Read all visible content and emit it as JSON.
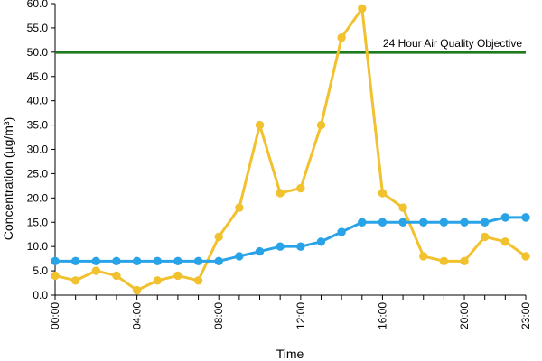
{
  "chart_data": {
    "type": "line",
    "title": "",
    "xlabel": "Time",
    "ylabel": "Concentration (µg/m³)",
    "ylim": [
      0,
      60
    ],
    "y_ticks": [
      "0.0",
      "5.0",
      "10.0",
      "15.0",
      "20.0",
      "25.0",
      "30.0",
      "35.0",
      "40.0",
      "45.0",
      "50.0",
      "55.0",
      "60.0"
    ],
    "x": [
      0,
      1,
      2,
      3,
      4,
      5,
      6,
      7,
      8,
      9,
      10,
      11,
      12,
      13,
      14,
      15,
      16,
      17,
      18,
      19,
      20,
      21,
      22,
      23
    ],
    "x_tick_labels": [
      {
        "hour": 0,
        "label": "00:00"
      },
      {
        "hour": 4,
        "label": "04:00"
      },
      {
        "hour": 8,
        "label": "08:00"
      },
      {
        "hour": 12,
        "label": "12:00"
      },
      {
        "hour": 16,
        "label": "16:00"
      },
      {
        "hour": 20,
        "label": "20:00"
      },
      {
        "hour": 23,
        "label": "23:00"
      }
    ],
    "grid": false,
    "series": [
      {
        "color": "#f2c12e",
        "marker_color": "#f2c12e",
        "values": [
          4,
          3,
          5,
          4,
          1,
          3,
          4,
          3,
          12,
          18,
          35,
          21,
          22,
          35,
          53,
          59,
          21,
          18,
          8,
          7,
          7,
          12,
          11,
          8
        ]
      },
      {
        "color": "#29a3e8",
        "marker_color": "#29a3e8",
        "values": [
          7,
          7,
          7,
          7,
          7,
          7,
          7,
          7,
          7,
          8,
          9,
          10,
          10,
          11,
          13,
          15,
          15,
          15,
          15,
          15,
          15,
          15,
          16,
          16
        ]
      }
    ],
    "reference_line": {
      "value": 50,
      "label": "24 Hour Air Quality Objective",
      "color": "#1d7a1d"
    }
  }
}
